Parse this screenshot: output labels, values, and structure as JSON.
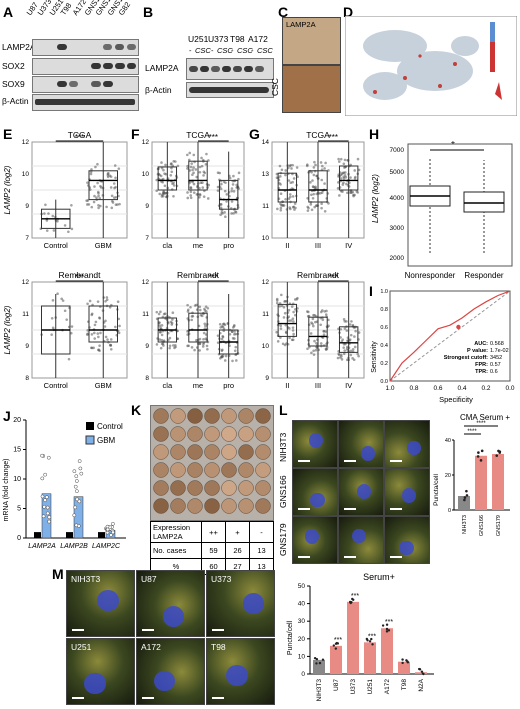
{
  "panels": {
    "A": "A",
    "B": "B",
    "C": "C",
    "D": "D",
    "E": "E",
    "F": "F",
    "G": "G",
    "H": "H",
    "I": "I",
    "J": "J",
    "K": "K",
    "L": "L",
    "M": "M"
  },
  "a": {
    "lanes": [
      "U87",
      "U373",
      "U251",
      "T98",
      "A172",
      "GNS166",
      "GNS179",
      "GNS144",
      "G82"
    ],
    "rows": [
      "LAMP2A",
      "SOX2",
      "SOX9",
      "β-Actin"
    ]
  },
  "b": {
    "lines": [
      "U251",
      "U373",
      "T98",
      "A172"
    ],
    "sub": [
      "-",
      "CSC"
    ],
    "rows": [
      "LAMP2A",
      "β-Actin"
    ]
  },
  "c": {
    "title": "LAMP2A",
    "row_label": "CSC"
  },
  "e": {
    "top": "TCGA",
    "bottom": "Rembrandt",
    "sig": "***",
    "groups": [
      "Control",
      "GBM"
    ],
    "ylabel": "LAMP2 (log2)"
  },
  "f": {
    "top": "TCGA",
    "bottom": "Rembrandt",
    "sig": "***",
    "groups": [
      "cla",
      "me",
      "pro"
    ]
  },
  "g": {
    "top": "TCGA",
    "bottom": "Rembrandt",
    "sig": "***",
    "groups": [
      "II",
      "III",
      "IV"
    ]
  },
  "h": {
    "sig": "*",
    "groups": [
      "Nonresponder",
      "Responder"
    ],
    "ylabel": "LAMP2 (log2)",
    "yticks": [
      "2000",
      "3000",
      "4000",
      "5000",
      "7000"
    ]
  },
  "i": {
    "xlabel": "Specificity",
    "ylabel": "Sensitivity",
    "xticks": [
      "1.0",
      "0.8",
      "0.6",
      "0.4",
      "0.2",
      "0.0"
    ],
    "yticks": [
      "0.0",
      "0.2",
      "0.4",
      "0.6",
      "0.8",
      "1.0"
    ],
    "stats": [
      [
        "AUC:",
        "0.568"
      ],
      [
        "P value:",
        "1.7e-02"
      ],
      [
        "Strongest cutoff:",
        "3452"
      ],
      [
        "FPR:",
        "0.57"
      ],
      [
        "TPR:",
        "0.6"
      ]
    ]
  },
  "j": {
    "ylabel": "mRNA (fold change)",
    "legend": [
      "Control",
      "GBM"
    ],
    "cats": [
      "LAMP2A",
      "LAMP2B",
      "LAMP2C"
    ],
    "yticks": [
      "0",
      "5",
      "10",
      "15",
      "20"
    ]
  },
  "k": {
    "table": [
      [
        "Expression LAMP2A",
        "++",
        "+",
        "-"
      ],
      [
        "No. cases",
        "59",
        "26",
        "13"
      ],
      [
        "%",
        "60",
        "27",
        "13"
      ]
    ]
  },
  "l": {
    "rows": [
      "NIH3T3",
      "GNS166",
      "GNS179"
    ],
    "title": "CMA Serum +",
    "ylabel": "Puncta/cell",
    "cats": [
      "NIH3T3",
      "GNS166",
      "GNS179"
    ],
    "sig": "****"
  },
  "m": {
    "tiles": [
      "NIH3T3",
      "U87",
      "U373",
      "U251",
      "A172",
      "T98"
    ],
    "title": "Serum+",
    "ylabel": "Puncta/cell",
    "cats": [
      "NIH3T3",
      "U87",
      "U373",
      "U251",
      "A172",
      "T98",
      "N2A"
    ],
    "sig": "***",
    "yticks": [
      "0",
      "10",
      "20",
      "30",
      "40",
      "50"
    ]
  },
  "chart_data": [
    {
      "type": "bar",
      "panel": "J",
      "categories": [
        "LAMP2A",
        "LAMP2B",
        "LAMP2C"
      ],
      "series": [
        {
          "name": "Control",
          "values": [
            1,
            1,
            1
          ]
        },
        {
          "name": "GBM",
          "values": [
            7.5,
            7,
            1.3
          ]
        }
      ],
      "ylabel": "mRNA (fold change)",
      "ylim": [
        0,
        20
      ]
    },
    {
      "type": "bar",
      "panel": "L",
      "categories": [
        "NIH3T3",
        "GNS166",
        "GNS179"
      ],
      "values": [
        8,
        31,
        32
      ],
      "ylabel": "Puncta/cell",
      "ylim": [
        0,
        40
      ]
    },
    {
      "type": "bar",
      "panel": "M",
      "categories": [
        "NIH3T3",
        "U87",
        "U373",
        "U251",
        "A172",
        "T98",
        "N2A"
      ],
      "values": [
        8,
        16,
        41,
        18,
        26,
        7,
        1
      ],
      "ylabel": "Puncta/cell",
      "ylim": [
        0,
        50
      ]
    },
    {
      "type": "line",
      "panel": "I",
      "xlabel": "Specificity",
      "ylabel": "Sensitivity",
      "series": [
        {
          "x": [
            1.0,
            0.9,
            0.8,
            0.7,
            0.6,
            0.5,
            0.4,
            0.3,
            0.2,
            0.1,
            0.0
          ],
          "y": [
            0.0,
            0.2,
            0.32,
            0.45,
            0.58,
            0.62,
            0.7,
            0.8,
            0.88,
            0.95,
            1.0
          ]
        }
      ]
    }
  ]
}
